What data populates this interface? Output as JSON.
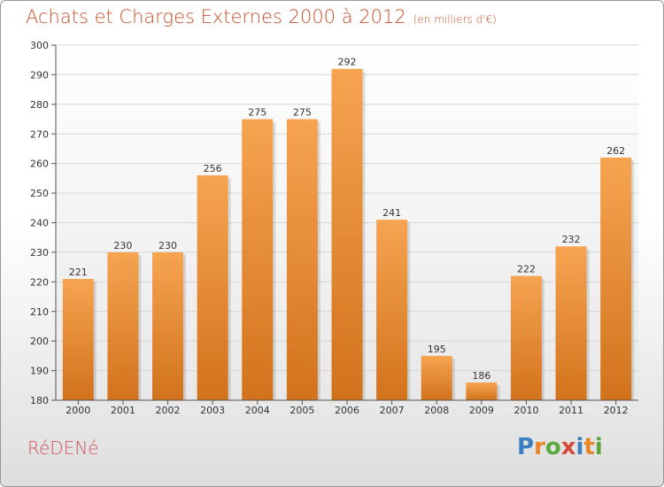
{
  "title": "Achats et Charges Externes 2000 à 2012",
  "subtitle": "(en milliers d'€)",
  "commune": "RéDENé",
  "logo": {
    "text": "Proxiti",
    "letters": [
      {
        "ch": "P",
        "color": "#3a7fc1"
      },
      {
        "ch": "r",
        "color": "#e8862a"
      },
      {
        "ch": "o",
        "color": "#59a83b"
      },
      {
        "ch": "x",
        "color": "#d84a3c"
      },
      {
        "ch": "i",
        "color": "#3a7fc1"
      },
      {
        "ch": "t",
        "color": "#e8862a"
      },
      {
        "ch": "i",
        "color": "#59a83b"
      }
    ]
  },
  "chart_data": {
    "type": "bar",
    "categories": [
      "2000",
      "2001",
      "2002",
      "2003",
      "2004",
      "2005",
      "2006",
      "2007",
      "2008",
      "2009",
      "2010",
      "2011",
      "2012"
    ],
    "values": [
      221,
      230,
      230,
      256,
      275,
      275,
      292,
      241,
      195,
      186,
      222,
      232,
      262
    ],
    "ylim": [
      180,
      300
    ],
    "yticks": [
      180,
      190,
      200,
      210,
      220,
      230,
      240,
      250,
      260,
      270,
      280,
      290,
      300
    ],
    "grid": true,
    "bar_color_top": "#f6a451",
    "bar_color_bottom": "#d2721c"
  }
}
